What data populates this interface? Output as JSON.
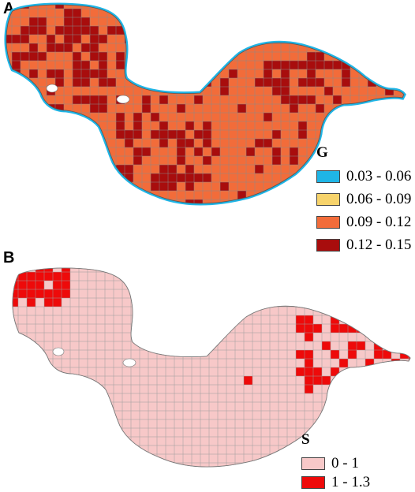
{
  "panel_a": {
    "label": "A",
    "legend": {
      "title": "G",
      "items": [
        {
          "label": "0.03 - 0.06",
          "color": "#1fb5e6"
        },
        {
          "label": "0.06 - 0.09",
          "color": "#f7d36b"
        },
        {
          "label": "0.09 - 0.12",
          "color": "#f26c3a"
        },
        {
          "label": "0.12 - 0.15",
          "color": "#a80d0d"
        }
      ]
    }
  },
  "panel_b": {
    "label": "B",
    "legend": {
      "title": "S",
      "items": [
        {
          "label": "0 - 1",
          "color": "#f7c8c8"
        },
        {
          "label": "1 - 1.3",
          "color": "#ee0a0a"
        }
      ]
    }
  }
}
